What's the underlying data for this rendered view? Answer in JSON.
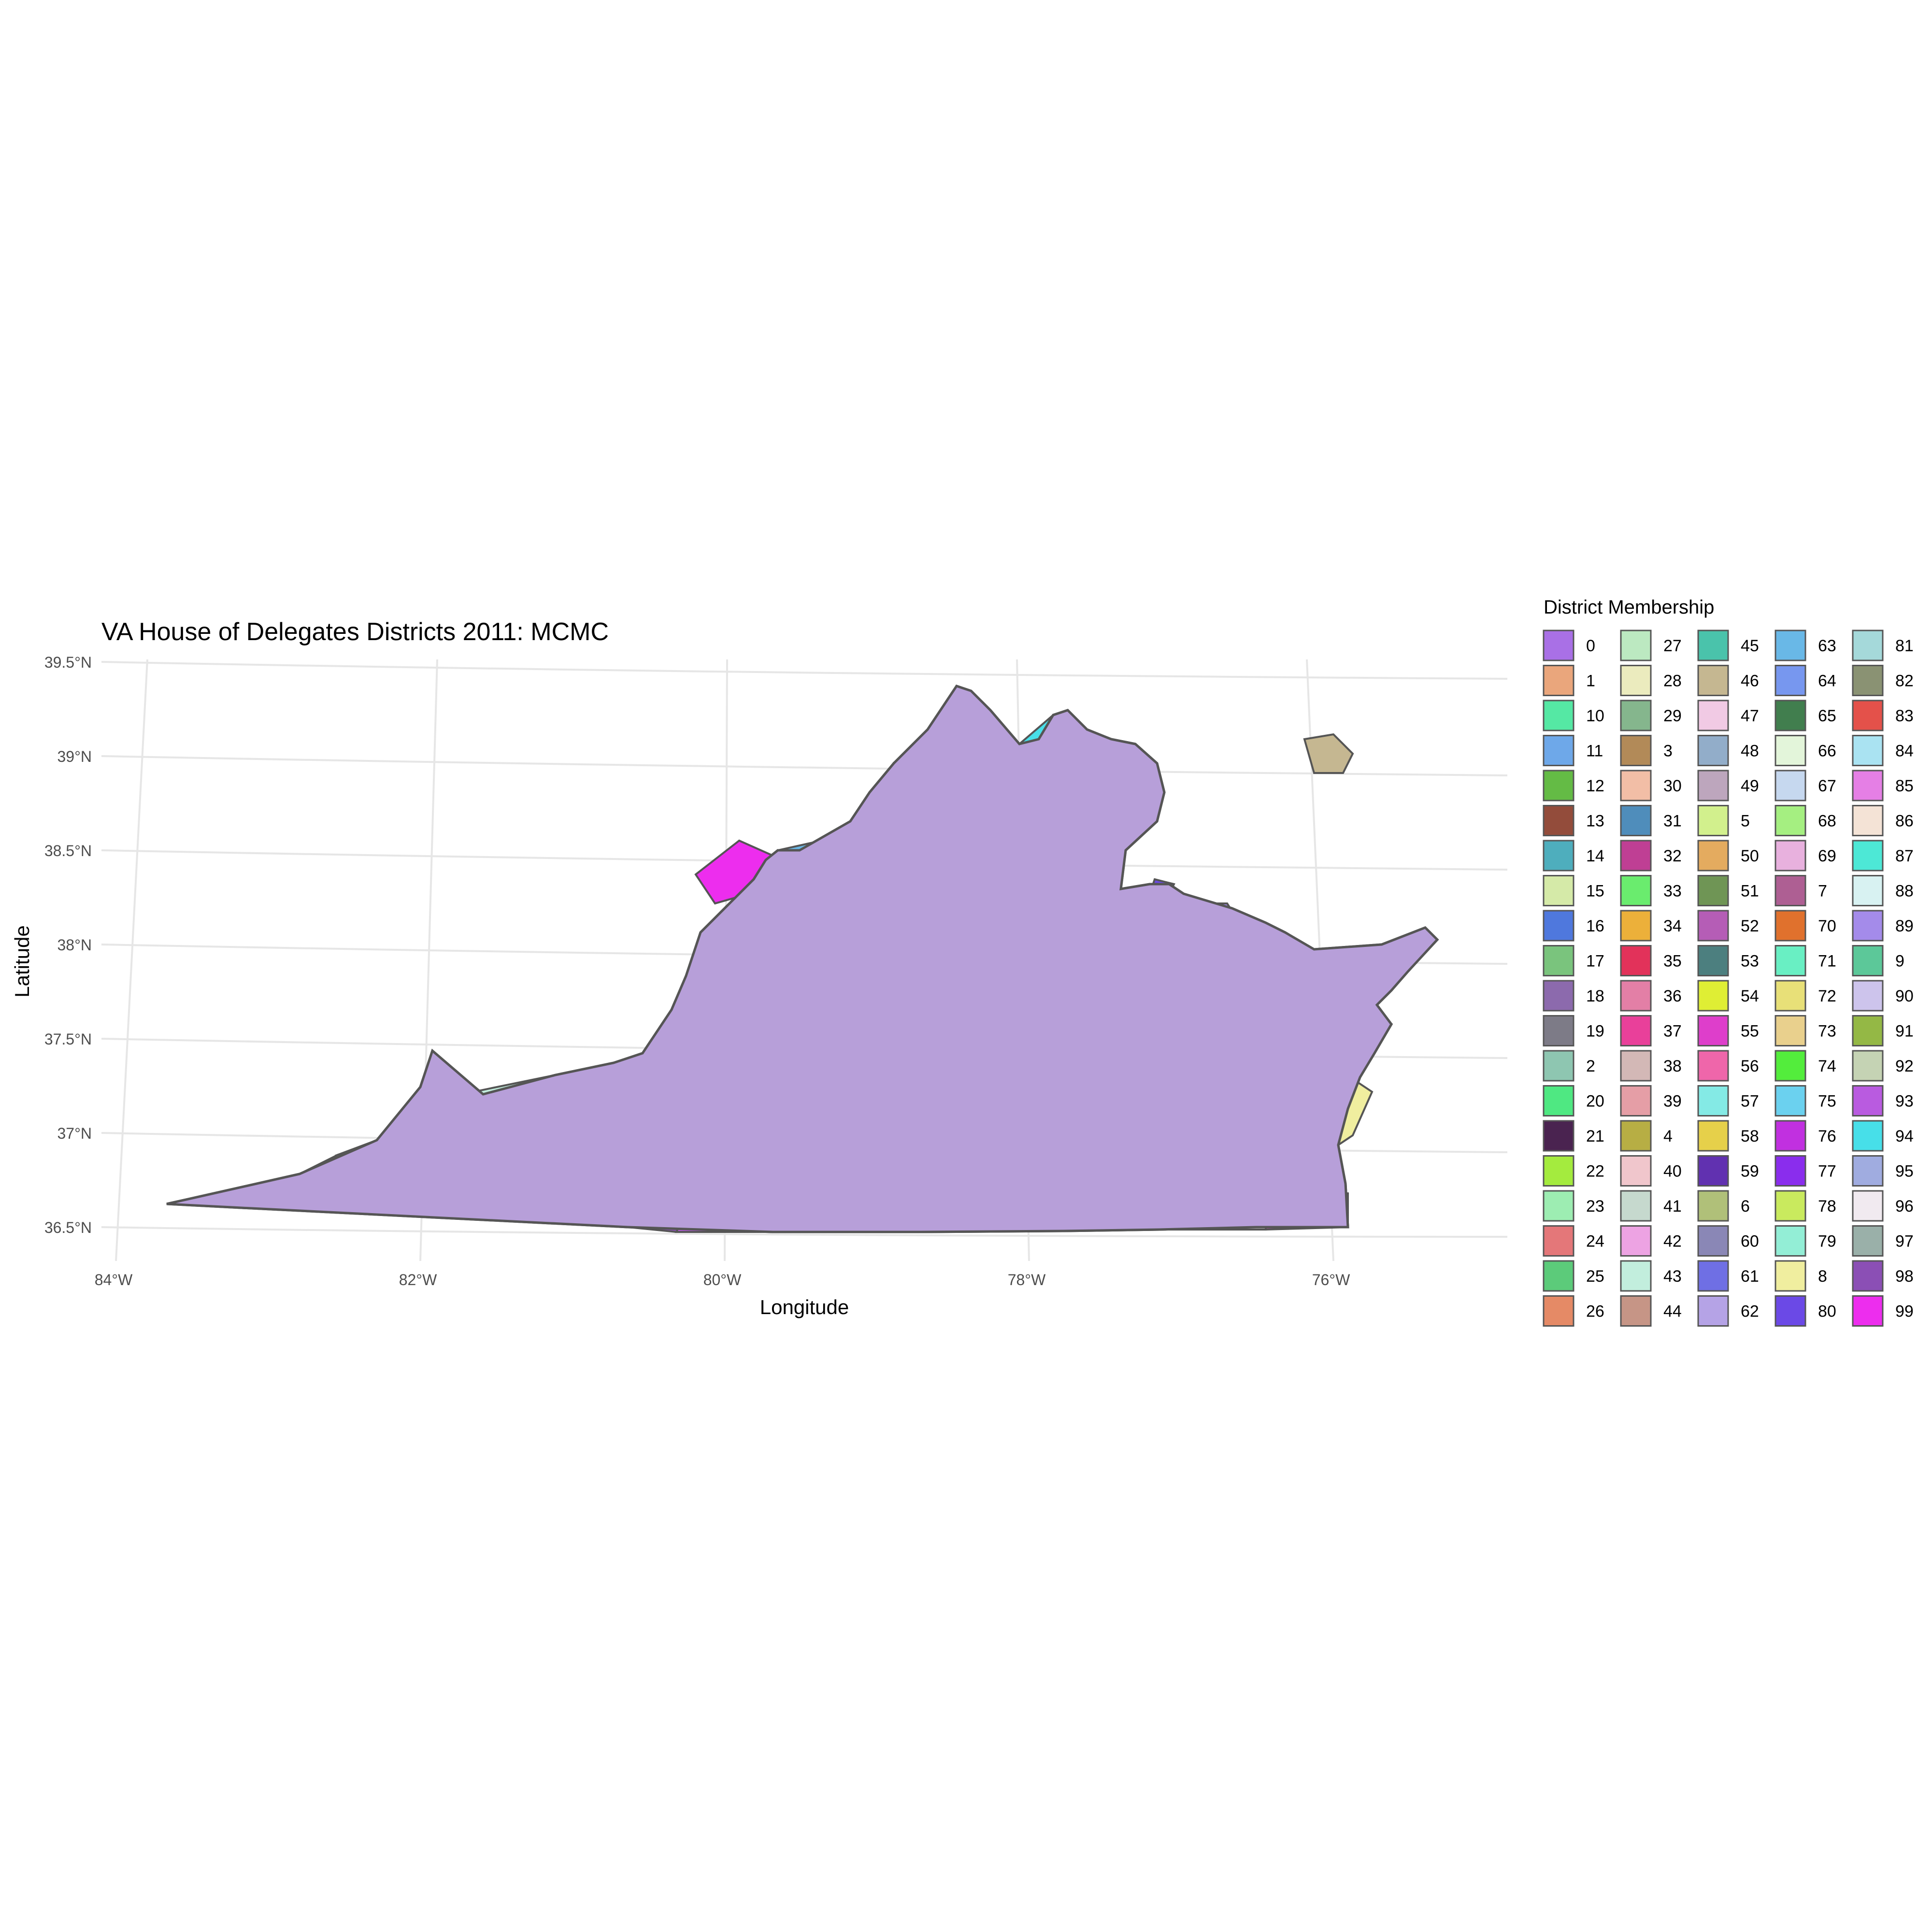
{
  "title": "VA House of Delegates Districts 2011: MCMC",
  "axes": {
    "xlabel": "Longitude",
    "ylabel": "Latitude",
    "x_ticks": [
      "84°W",
      "82°W",
      "80°W",
      "78°W",
      "76°W"
    ],
    "y_ticks": [
      "39.5°N",
      "39°N",
      "38.5°N",
      "38°N",
      "37.5°N",
      "37°N",
      "36.5°N"
    ]
  },
  "legend": {
    "title": "District Membership",
    "entries": [
      {
        "label": "0",
        "color": "#a970e6"
      },
      {
        "label": "1",
        "color": "#eaa67c"
      },
      {
        "label": "10",
        "color": "#55e8a4"
      },
      {
        "label": "11",
        "color": "#6ea8e9"
      },
      {
        "label": "12",
        "color": "#64bb45"
      },
      {
        "label": "13",
        "color": "#934c3b"
      },
      {
        "label": "14",
        "color": "#4eaebd"
      },
      {
        "label": "15",
        "color": "#d5eaa8"
      },
      {
        "label": "16",
        "color": "#4f78dd"
      },
      {
        "label": "17",
        "color": "#7ac47d"
      },
      {
        "label": "18",
        "color": "#8c6aad"
      },
      {
        "label": "19",
        "color": "#7d7b87"
      },
      {
        "label": "2",
        "color": "#8ec6b1"
      },
      {
        "label": "20",
        "color": "#4fe882"
      },
      {
        "label": "21",
        "color": "#4a2350"
      },
      {
        "label": "22",
        "color": "#a4eb3e"
      },
      {
        "label": "23",
        "color": "#9dedb2"
      },
      {
        "label": "24",
        "color": "#e47779"
      },
      {
        "label": "25",
        "color": "#5ccb7a"
      },
      {
        "label": "26",
        "color": "#e58a66"
      },
      {
        "label": "27",
        "color": "#bce9c1"
      },
      {
        "label": "28",
        "color": "#ebebbe"
      },
      {
        "label": "29",
        "color": "#85b68d"
      },
      {
        "label": "3",
        "color": "#b28a58"
      },
      {
        "label": "30",
        "color": "#f2bea6"
      },
      {
        "label": "31",
        "color": "#4f8dbb"
      },
      {
        "label": "32",
        "color": "#bf3f94"
      },
      {
        "label": "33",
        "color": "#6aec6e"
      },
      {
        "label": "34",
        "color": "#ecb03a"
      },
      {
        "label": "35",
        "color": "#e2325a"
      },
      {
        "label": "36",
        "color": "#e37fa6"
      },
      {
        "label": "37",
        "color": "#e9409a"
      },
      {
        "label": "38",
        "color": "#d3b8b6"
      },
      {
        "label": "39",
        "color": "#e59ea6"
      },
      {
        "label": "4",
        "color": "#b7ae44"
      },
      {
        "label": "40",
        "color": "#f0c6cc"
      },
      {
        "label": "41",
        "color": "#c6d9ce"
      },
      {
        "label": "42",
        "color": "#eda3e3"
      },
      {
        "label": "43",
        "color": "#c2eedd"
      },
      {
        "label": "44",
        "color": "#c69586"
      },
      {
        "label": "45",
        "color": "#4ac3ab"
      },
      {
        "label": "46",
        "color": "#c5b791"
      },
      {
        "label": "47",
        "color": "#f1cae4"
      },
      {
        "label": "48",
        "color": "#92adc9"
      },
      {
        "label": "49",
        "color": "#bda6bd"
      },
      {
        "label": "5",
        "color": "#d2f08d"
      },
      {
        "label": "50",
        "color": "#e4ab5f"
      },
      {
        "label": "51",
        "color": "#6f9555"
      },
      {
        "label": "52",
        "color": "#b55db6"
      },
      {
        "label": "53",
        "color": "#4c7f7f"
      },
      {
        "label": "54",
        "color": "#dfee34"
      },
      {
        "label": "55",
        "color": "#de3ecb"
      },
      {
        "label": "56",
        "color": "#ef66aa"
      },
      {
        "label": "57",
        "color": "#84eae5"
      },
      {
        "label": "58",
        "color": "#e6d04a"
      },
      {
        "label": "59",
        "color": "#6131b0"
      },
      {
        "label": "6",
        "color": "#b0c079"
      },
      {
        "label": "60",
        "color": "#8a87b6"
      },
      {
        "label": "61",
        "color": "#6f6fe4"
      },
      {
        "label": "62",
        "color": "#b5a3e6"
      },
      {
        "label": "63",
        "color": "#69b8e7"
      },
      {
        "label": "64",
        "color": "#7797ef"
      },
      {
        "label": "65",
        "color": "#417e4e"
      },
      {
        "label": "66",
        "color": "#e3f5da"
      },
      {
        "label": "67",
        "color": "#c6d8ef"
      },
      {
        "label": "68",
        "color": "#a5ef81"
      },
      {
        "label": "69",
        "color": "#e8b1de"
      },
      {
        "label": "7",
        "color": "#ae5f93"
      },
      {
        "label": "70",
        "color": "#e0712d"
      },
      {
        "label": "71",
        "color": "#69efc3"
      },
      {
        "label": "72",
        "color": "#e8e078"
      },
      {
        "label": "73",
        "color": "#e9d08d"
      },
      {
        "label": "74",
        "color": "#53ed3c"
      },
      {
        "label": "75",
        "color": "#6bd1ef"
      },
      {
        "label": "76",
        "color": "#c130e0"
      },
      {
        "label": "77",
        "color": "#8a2ded"
      },
      {
        "label": "78",
        "color": "#c9ea5e"
      },
      {
        "label": "79",
        "color": "#93eed6"
      },
      {
        "label": "8",
        "color": "#f0ee9f"
      },
      {
        "label": "80",
        "color": "#6b49e6"
      },
      {
        "label": "81",
        "color": "#a5d9da"
      },
      {
        "label": "82",
        "color": "#8a9273"
      },
      {
        "label": "83",
        "color": "#e4514a"
      },
      {
        "label": "84",
        "color": "#aae3f2"
      },
      {
        "label": "85",
        "color": "#e57fe5"
      },
      {
        "label": "86",
        "color": "#f4e3d6"
      },
      {
        "label": "87",
        "color": "#4de8d6"
      },
      {
        "label": "88",
        "color": "#d8f2f2"
      },
      {
        "label": "89",
        "color": "#a48bea"
      },
      {
        "label": "9",
        "color": "#5cc899"
      },
      {
        "label": "90",
        "color": "#cdc4ec"
      },
      {
        "label": "91",
        "color": "#94b845"
      },
      {
        "label": "92",
        "color": "#c5d3b4"
      },
      {
        "label": "93",
        "color": "#b95be0"
      },
      {
        "label": "94",
        "color": "#47dfe9"
      },
      {
        "label": "95",
        "color": "#a0ace0"
      },
      {
        "label": "96",
        "color": "#f1eaf0"
      },
      {
        "label": "97",
        "color": "#9ab0a9"
      },
      {
        "label": "98",
        "color": "#8b4fb5"
      },
      {
        "label": "99",
        "color": "#ed2dee"
      }
    ]
  },
  "map": {
    "region": "Virginia",
    "border_color": "#555555",
    "grid_color": "#e6e6e6",
    "lon_range": [
      -84,
      -75
    ],
    "lat_range": [
      36.5,
      39.5
    ]
  }
}
